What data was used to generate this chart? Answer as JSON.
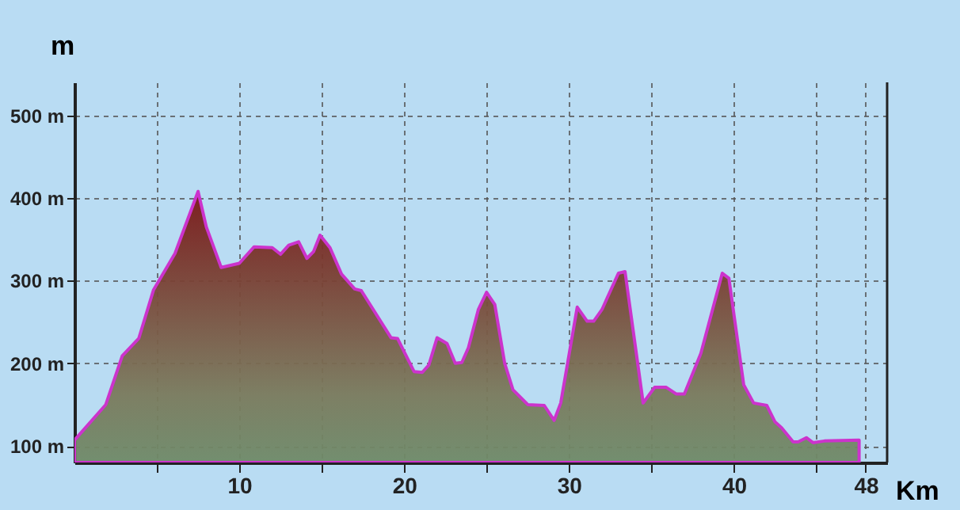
{
  "chart_data": {
    "type": "area",
    "xlabel": "Km",
    "ylabel": "m",
    "xlim": [
      0,
      49.3
    ],
    "ylim": [
      80,
      540
    ],
    "xticks": [
      {
        "value": 5,
        "label": null
      },
      10,
      {
        "value": 15,
        "label": null
      },
      20,
      {
        "value": 25,
        "label": null
      },
      30,
      {
        "value": 35,
        "label": null
      },
      40,
      {
        "value": 45,
        "label": null
      },
      48
    ],
    "yticks": [
      {
        "value": 100,
        "label": "100 m"
      },
      {
        "value": 200,
        "label": "200 m"
      },
      {
        "value": 300,
        "label": "300 m"
      },
      {
        "value": 400,
        "label": "400 m"
      },
      {
        "value": 500,
        "label": "500 m"
      }
    ],
    "grid": true,
    "series": [
      {
        "color": "#cc33cc",
        "x": [
          0,
          1.9,
          2.9,
          3.9,
          4.8,
          6.1,
          7.5,
          8.0,
          8.9,
          10.0,
          10.9,
          12.0,
          12.5,
          13.0,
          13.6,
          14.1,
          14.5,
          14.9,
          15.5,
          16.2,
          17.0,
          17.4,
          19.2,
          19.6,
          20.6,
          21.1,
          21.5,
          22.0,
          22.6,
          23.1,
          23.5,
          23.9,
          24.5,
          25.0,
          25.5,
          26.1,
          26.6,
          27.5,
          28.5,
          29.1,
          29.5,
          30.5,
          31.1,
          31.5,
          32.0,
          33.0,
          33.4,
          34.5,
          35.2,
          35.9,
          36.5,
          37.0,
          38.0,
          39.3,
          39.7,
          40.6,
          41.2,
          42.0,
          42.5,
          42.9,
          43.6,
          43.9,
          44.4,
          44.8,
          45.5,
          47.6
        ],
        "values": [
          107,
          150,
          209,
          230,
          289,
          333,
          408,
          365,
          316,
          321,
          341,
          340,
          332,
          343,
          347,
          327,
          335,
          355,
          340,
          308,
          290,
          288,
          231,
          230,
          190,
          189,
          198,
          231,
          224,
          200,
          201,
          219,
          265,
          286,
          271,
          200,
          168,
          150,
          149,
          131,
          152,
          268,
          251,
          251,
          265,
          309,
          311,
          152,
          171,
          171,
          163,
          163,
          212,
          309,
          303,
          174,
          152,
          149,
          129,
          122,
          105,
          105,
          110,
          104,
          106,
          107
        ]
      }
    ]
  }
}
